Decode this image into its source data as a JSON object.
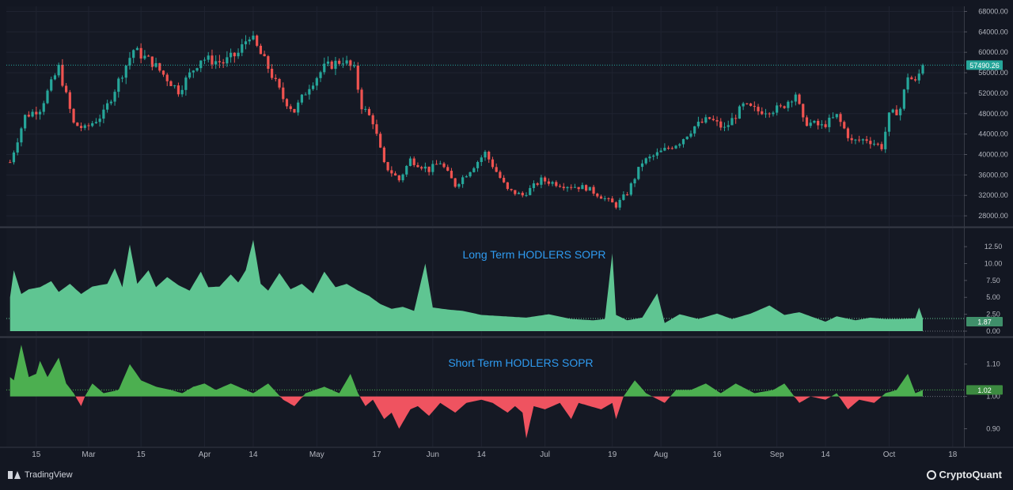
{
  "branding": {
    "tradingview": "TradingView",
    "cryptoquant": "CryptoQuant"
  },
  "colors": {
    "background": "#131722",
    "pane_bg": "#151924",
    "grid": "#1f2330",
    "axis_text": "#b2b5be",
    "up": "#26a69a",
    "down": "#ef5350",
    "lth_fill": "#5fc592",
    "sth_up": "#4caf50",
    "sth_down": "#ef5360",
    "title_blue": "#2f9bf0",
    "price_tag": "#26a69a"
  },
  "chart_data": [
    {
      "type": "candlestick",
      "name": "",
      "title": "",
      "ylim": [
        26000,
        69000
      ],
      "y_ticks": [
        "28000.00",
        "32000.00",
        "36000.00",
        "40000.00",
        "44000.00",
        "48000.00",
        "52000.00",
        "56000.00",
        "60000.00",
        "64000.00",
        "68000.00"
      ],
      "last_price_label": "57490.26",
      "last_price": 57490.26,
      "anchors": [
        [
          "2021-02-08",
          38500
        ],
        [
          "2021-02-12",
          47500
        ],
        [
          "2021-02-16",
          49000
        ],
        [
          "2021-02-21",
          57000
        ],
        [
          "2021-02-25",
          46000
        ],
        [
          "2021-02-28",
          45000
        ],
        [
          "2021-03-05",
          48000
        ],
        [
          "2021-03-10",
          56000
        ],
        [
          "2021-03-13",
          60500
        ],
        [
          "2021-03-18",
          58000
        ],
        [
          "2021-03-25",
          52500
        ],
        [
          "2021-03-31",
          58800
        ],
        [
          "2021-04-06",
          58000
        ],
        [
          "2021-04-10",
          59800
        ],
        [
          "2021-04-13",
          63500
        ],
        [
          "2021-04-18",
          57000
        ],
        [
          "2021-04-22",
          51000
        ],
        [
          "2021-04-25",
          48500
        ],
        [
          "2021-04-29",
          53500
        ],
        [
          "2021-05-03",
          57000
        ],
        [
          "2021-05-08",
          58500
        ],
        [
          "2021-05-11",
          56500
        ],
        [
          "2021-05-13",
          49500
        ],
        [
          "2021-05-16",
          46500
        ],
        [
          "2021-05-19",
          38000
        ],
        [
          "2021-05-23",
          35000
        ],
        [
          "2021-05-26",
          39000
        ],
        [
          "2021-05-31",
          37000
        ],
        [
          "2021-06-03",
          38500
        ],
        [
          "2021-06-07",
          34000
        ],
        [
          "2021-06-11",
          37000
        ],
        [
          "2021-06-15",
          40300
        ],
        [
          "2021-06-21",
          33000
        ],
        [
          "2021-06-25",
          32000
        ],
        [
          "2021-06-30",
          35000
        ],
        [
          "2021-07-06",
          34000
        ],
        [
          "2021-07-12",
          33500
        ],
        [
          "2021-07-16",
          31800
        ],
        [
          "2021-07-20",
          30000
        ],
        [
          "2021-07-23",
          32500
        ],
        [
          "2021-07-27",
          38500
        ],
        [
          "2021-08-01",
          40500
        ],
        [
          "2021-08-06",
          42500
        ],
        [
          "2021-08-10",
          45500
        ],
        [
          "2021-08-14",
          47000
        ],
        [
          "2021-08-18",
          45000
        ],
        [
          "2021-08-23",
          49500
        ],
        [
          "2021-08-27",
          48500
        ],
        [
          "2021-09-02",
          49000
        ],
        [
          "2021-09-06",
          52000
        ],
        [
          "2021-09-08",
          46500
        ],
        [
          "2021-09-13",
          45500
        ],
        [
          "2021-09-17",
          47500
        ],
        [
          "2021-09-21",
          42500
        ],
        [
          "2021-09-25",
          43000
        ],
        [
          "2021-09-29",
          41500
        ],
        [
          "2021-10-01",
          47500
        ],
        [
          "2021-10-04",
          49000
        ],
        [
          "2021-10-06",
          55500
        ],
        [
          "2021-10-08",
          54000
        ],
        [
          "2021-10-10",
          57490
        ]
      ]
    },
    {
      "type": "area",
      "title": "Long Term HODLERS SOPR",
      "ylim": [
        -0.7,
        15.2
      ],
      "y_ticks": [
        "0.00",
        "2.50",
        "5.00",
        "7.50",
        "10.00",
        "12.50"
      ],
      "last_value_label": "1.87",
      "last_value": 1.87,
      "anchors": [
        [
          "2021-02-08",
          5.0
        ],
        [
          "2021-02-09",
          9.0
        ],
        [
          "2021-02-11",
          5.5
        ],
        [
          "2021-02-13",
          6.2
        ],
        [
          "2021-02-16",
          6.5
        ],
        [
          "2021-02-19",
          7.4
        ],
        [
          "2021-02-21",
          5.8
        ],
        [
          "2021-02-24",
          7.0
        ],
        [
          "2021-02-27",
          5.5
        ],
        [
          "2021-03-02",
          6.6
        ],
        [
          "2021-03-06",
          7.0
        ],
        [
          "2021-03-08",
          9.3
        ],
        [
          "2021-03-10",
          6.5
        ],
        [
          "2021-03-12",
          12.8
        ],
        [
          "2021-03-14",
          7.0
        ],
        [
          "2021-03-17",
          9.0
        ],
        [
          "2021-03-19",
          6.5
        ],
        [
          "2021-03-22",
          8.0
        ],
        [
          "2021-03-25",
          6.8
        ],
        [
          "2021-03-28",
          6.0
        ],
        [
          "2021-03-31",
          8.8
        ],
        [
          "2021-04-02",
          6.5
        ],
        [
          "2021-04-05",
          6.6
        ],
        [
          "2021-04-08",
          8.4
        ],
        [
          "2021-04-10",
          7.2
        ],
        [
          "2021-04-12",
          9.0
        ],
        [
          "2021-04-14",
          13.5
        ],
        [
          "2021-04-16",
          7.0
        ],
        [
          "2021-04-18",
          6.0
        ],
        [
          "2021-04-21",
          8.6
        ],
        [
          "2021-04-24",
          6.2
        ],
        [
          "2021-04-27",
          7.0
        ],
        [
          "2021-04-30",
          5.6
        ],
        [
          "2021-05-03",
          8.8
        ],
        [
          "2021-05-06",
          6.5
        ],
        [
          "2021-05-09",
          7.0
        ],
        [
          "2021-05-12",
          6.0
        ],
        [
          "2021-05-15",
          5.2
        ],
        [
          "2021-05-18",
          4.0
        ],
        [
          "2021-05-21",
          3.3
        ],
        [
          "2021-05-24",
          3.6
        ],
        [
          "2021-05-27",
          3.0
        ],
        [
          "2021-05-30",
          10.0
        ],
        [
          "2021-06-01",
          3.5
        ],
        [
          "2021-06-05",
          3.2
        ],
        [
          "2021-06-09",
          3.0
        ],
        [
          "2021-06-14",
          2.4
        ],
        [
          "2021-06-20",
          2.2
        ],
        [
          "2021-06-26",
          2.0
        ],
        [
          "2021-07-02",
          2.5
        ],
        [
          "2021-07-08",
          1.8
        ],
        [
          "2021-07-14",
          1.6
        ],
        [
          "2021-07-17",
          1.8
        ],
        [
          "2021-07-19",
          11.5
        ],
        [
          "2021-07-20",
          2.4
        ],
        [
          "2021-07-23",
          1.6
        ],
        [
          "2021-07-27",
          2.0
        ],
        [
          "2021-07-31",
          5.6
        ],
        [
          "2021-08-02",
          1.2
        ],
        [
          "2021-08-06",
          2.5
        ],
        [
          "2021-08-11",
          1.8
        ],
        [
          "2021-08-16",
          2.6
        ],
        [
          "2021-08-20",
          1.8
        ],
        [
          "2021-08-25",
          2.6
        ],
        [
          "2021-08-30",
          3.8
        ],
        [
          "2021-09-03",
          2.4
        ],
        [
          "2021-09-07",
          2.8
        ],
        [
          "2021-09-10",
          2.2
        ],
        [
          "2021-09-14",
          1.4
        ],
        [
          "2021-09-17",
          2.2
        ],
        [
          "2021-09-22",
          1.6
        ],
        [
          "2021-09-26",
          2.0
        ],
        [
          "2021-09-30",
          1.8
        ],
        [
          "2021-10-04",
          1.8
        ],
        [
          "2021-10-08",
          1.9
        ],
        [
          "2021-10-09",
          3.5
        ],
        [
          "2021-10-10",
          1.87
        ]
      ]
    },
    {
      "type": "area",
      "title": "Short Term HODLERS SOPR",
      "baseline": 1.0,
      "ylim": [
        0.845,
        1.18
      ],
      "y_ticks": [
        "0.90",
        "1.00",
        "1.10"
      ],
      "last_value_label": "1.02",
      "last_value": 1.02,
      "anchors": [
        [
          "2021-02-08",
          1.06
        ],
        [
          "2021-02-09",
          1.05
        ],
        [
          "2021-02-11",
          1.16
        ],
        [
          "2021-02-13",
          1.06
        ],
        [
          "2021-02-15",
          1.07
        ],
        [
          "2021-02-16",
          1.11
        ],
        [
          "2021-02-18",
          1.06
        ],
        [
          "2021-02-21",
          1.12
        ],
        [
          "2021-02-23",
          1.04
        ],
        [
          "2021-02-25",
          1.01
        ],
        [
          "2021-02-27",
          0.97
        ],
        [
          "2021-02-28",
          1.0
        ],
        [
          "2021-03-02",
          1.04
        ],
        [
          "2021-03-05",
          1.01
        ],
        [
          "2021-03-09",
          1.02
        ],
        [
          "2021-03-12",
          1.1
        ],
        [
          "2021-03-15",
          1.05
        ],
        [
          "2021-03-19",
          1.03
        ],
        [
          "2021-03-23",
          1.02
        ],
        [
          "2021-03-26",
          1.01
        ],
        [
          "2021-03-29",
          1.03
        ],
        [
          "2021-04-01",
          1.04
        ],
        [
          "2021-04-04",
          1.02
        ],
        [
          "2021-04-08",
          1.04
        ],
        [
          "2021-04-12",
          1.02
        ],
        [
          "2021-04-14",
          1.01
        ],
        [
          "2021-04-18",
          1.04
        ],
        [
          "2021-04-22",
          0.99
        ],
        [
          "2021-04-25",
          0.97
        ],
        [
          "2021-04-28",
          1.01
        ],
        [
          "2021-05-03",
          1.03
        ],
        [
          "2021-05-07",
          1.01
        ],
        [
          "2021-05-10",
          1.07
        ],
        [
          "2021-05-12",
          1.01
        ],
        [
          "2021-05-14",
          0.97
        ],
        [
          "2021-05-16",
          0.99
        ],
        [
          "2021-05-19",
          0.93
        ],
        [
          "2021-05-21",
          0.95
        ],
        [
          "2021-05-23",
          0.9
        ],
        [
          "2021-05-26",
          0.96
        ],
        [
          "2021-05-28",
          0.97
        ],
        [
          "2021-05-31",
          0.94
        ],
        [
          "2021-06-03",
          0.98
        ],
        [
          "2021-06-07",
          0.95
        ],
        [
          "2021-06-10",
          0.98
        ],
        [
          "2021-06-14",
          0.99
        ],
        [
          "2021-06-17",
          0.98
        ],
        [
          "2021-06-21",
          0.95
        ],
        [
          "2021-06-23",
          0.97
        ],
        [
          "2021-06-25",
          0.95
        ],
        [
          "2021-06-26",
          0.87
        ],
        [
          "2021-06-28",
          0.97
        ],
        [
          "2021-07-01",
          0.96
        ],
        [
          "2021-07-05",
          0.98
        ],
        [
          "2021-07-08",
          0.93
        ],
        [
          "2021-07-10",
          0.98
        ],
        [
          "2021-07-13",
          0.97
        ],
        [
          "2021-07-16",
          0.96
        ],
        [
          "2021-07-19",
          0.98
        ],
        [
          "2021-07-20",
          0.93
        ],
        [
          "2021-07-22",
          1.0
        ],
        [
          "2021-07-25",
          1.05
        ],
        [
          "2021-07-28",
          1.01
        ],
        [
          "2021-08-02",
          0.98
        ],
        [
          "2021-08-05",
          1.02
        ],
        [
          "2021-08-09",
          1.02
        ],
        [
          "2021-08-13",
          1.04
        ],
        [
          "2021-08-17",
          1.01
        ],
        [
          "2021-08-21",
          1.04
        ],
        [
          "2021-08-26",
          1.01
        ],
        [
          "2021-08-31",
          1.02
        ],
        [
          "2021-09-03",
          1.04
        ],
        [
          "2021-09-07",
          0.98
        ],
        [
          "2021-09-10",
          1.0
        ],
        [
          "2021-09-14",
          0.99
        ],
        [
          "2021-09-17",
          1.01
        ],
        [
          "2021-09-20",
          0.96
        ],
        [
          "2021-09-23",
          0.99
        ],
        [
          "2021-09-27",
          0.98
        ],
        [
          "2021-09-30",
          1.01
        ],
        [
          "2021-10-03",
          1.02
        ],
        [
          "2021-10-06",
          1.07
        ],
        [
          "2021-10-08",
          1.01
        ],
        [
          "2021-10-10",
          1.02
        ]
      ]
    }
  ],
  "x_axis": {
    "start": "2021-02-07",
    "end": "2021-10-21",
    "ticks": [
      [
        "15",
        "2021-02-15"
      ],
      [
        "Mar",
        "2021-03-01"
      ],
      [
        "15",
        "2021-03-15"
      ],
      [
        "Apr",
        "2021-04-01"
      ],
      [
        "14",
        "2021-04-14"
      ],
      [
        "May",
        "2021-05-01"
      ],
      [
        "17",
        "2021-05-17"
      ],
      [
        "Jun",
        "2021-06-01"
      ],
      [
        "14",
        "2021-06-14"
      ],
      [
        "Jul",
        "2021-07-01"
      ],
      [
        "19",
        "2021-07-19"
      ],
      [
        "Aug",
        "2021-08-01"
      ],
      [
        "16",
        "2021-08-16"
      ],
      [
        "Sep",
        "2021-09-01"
      ],
      [
        "14",
        "2021-09-14"
      ],
      [
        "Oct",
        "2021-10-01"
      ],
      [
        "18",
        "2021-10-18"
      ]
    ]
  }
}
